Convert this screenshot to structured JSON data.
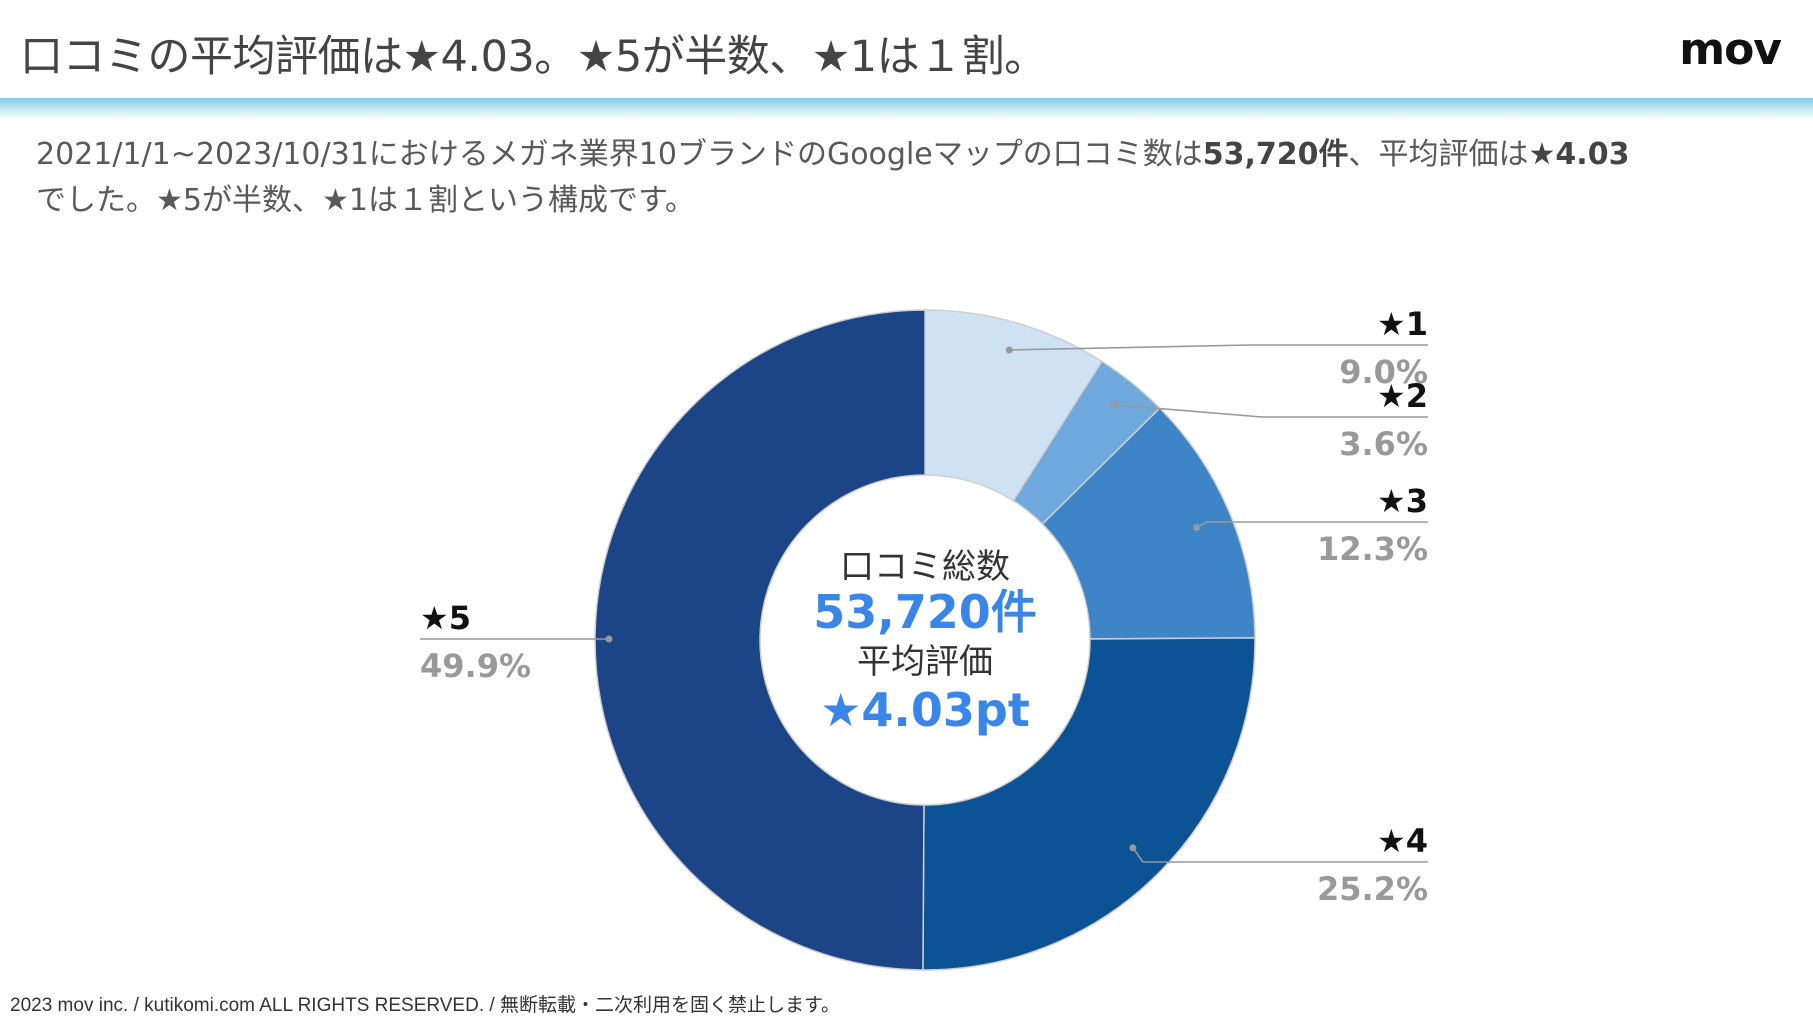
{
  "page": {
    "title": "口コミの平均評価は★4.03。★5が半数、★1は１割。",
    "logo": "mov",
    "description": {
      "part1": "2021/1/1~2023/10/31におけるメガネ業界10ブランドのGoogleマップの口コミ数は",
      "count": "53,720件",
      "part2": "、平均評価は",
      "avg": "★4.03",
      "part3": "でした。★5が半数、★1は１割という構成です。"
    },
    "footer": "2023 mov inc. / kutikomi.com ALL RIGHTS RESERVED. / 無断転載・二次利用を固く禁止します。"
  },
  "chart_data": {
    "type": "pie",
    "style": "donut",
    "title": "",
    "center_text": {
      "line1": "口コミ総数",
      "line2": "53,720件",
      "line3": "平均評価",
      "line4": "★4.03pt"
    },
    "slices": [
      {
        "label": "★1",
        "value": 9.0,
        "display": "9.0%",
        "color": "#cfe2f3"
      },
      {
        "label": "★2",
        "value": 3.6,
        "display": "3.6%",
        "color": "#6fa8dc"
      },
      {
        "label": "★3",
        "value": 12.3,
        "display": "12.3%",
        "color": "#3d85c6"
      },
      {
        "label": "★4",
        "value": 25.2,
        "display": "25.2%",
        "color": "#0b5394"
      },
      {
        "label": "★5",
        "value": 49.9,
        "display": "49.9%",
        "color": "#1c4587"
      }
    ],
    "colors": {
      "accent": "#3a86e8",
      "label_value": "#999999",
      "leader": "#999999"
    }
  }
}
